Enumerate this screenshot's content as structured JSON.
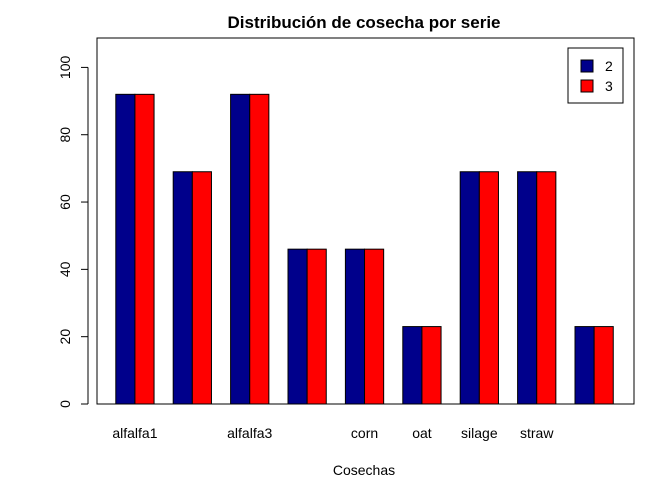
{
  "chart_data": {
    "type": "bar",
    "title": "Distribución de cosecha por serie",
    "xlabel": "Cosechas",
    "ylabel": "",
    "ylim": [
      0,
      100
    ],
    "yticks": [
      0,
      20,
      40,
      60,
      80,
      100
    ],
    "categories": [
      "alfalfa1",
      "",
      "alfalfa3",
      "",
      "corn",
      "oat",
      "silage",
      "straw",
      ""
    ],
    "series": [
      {
        "name": "2",
        "color": "#00008B",
        "values": [
          92,
          69,
          92,
          46,
          46,
          23,
          69,
          69,
          23
        ]
      },
      {
        "name": "3",
        "color": "#FF0000",
        "values": [
          92,
          69,
          92,
          46,
          46,
          23,
          69,
          69,
          23
        ]
      }
    ],
    "grid": false,
    "legend_position": "top-right"
  }
}
